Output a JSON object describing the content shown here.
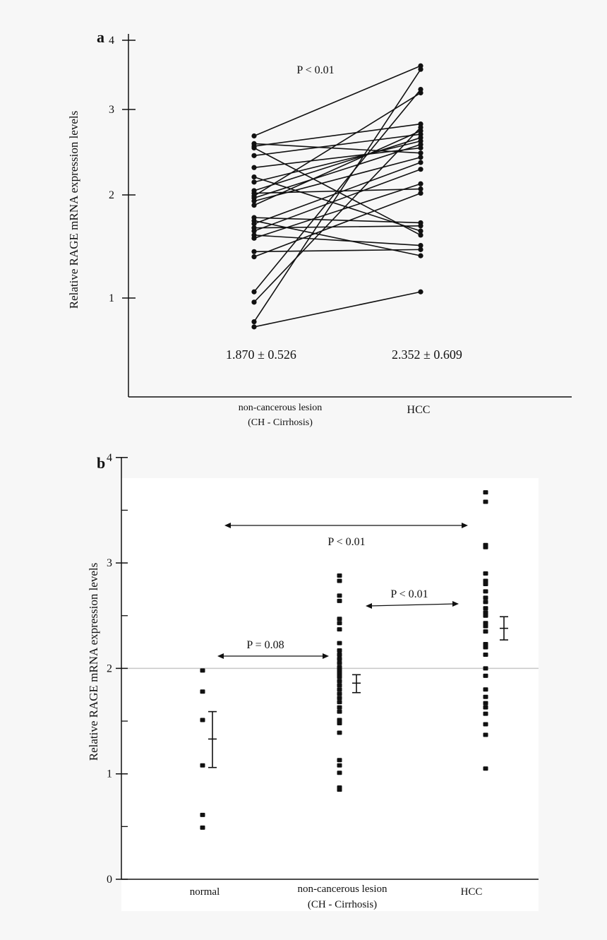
{
  "chart_data": [
    {
      "panel": "a",
      "type": "line",
      "subtype": "paired",
      "ylabel": "Relative RAGE mRNA expression levels",
      "categories": [
        "non-cancerous lesion",
        "HCC"
      ],
      "category_sublabels": [
        "(CH - Cirrhosis)",
        ""
      ],
      "yticks": [
        1,
        2,
        3,
        4
      ],
      "annotation": "P < 0.01",
      "summary": [
        "1.870 ± 0.526",
        "2.352 ± 0.609"
      ],
      "pairs": [
        [
          2.69,
          3.63
        ],
        [
          2.6,
          2.49
        ],
        [
          2.57,
          2.83
        ],
        [
          2.55,
          1.61
        ],
        [
          2.46,
          2.71
        ],
        [
          2.32,
          2.55
        ],
        [
          2.21,
          1.65
        ],
        [
          2.15,
          2.63
        ],
        [
          2.05,
          2.67
        ],
        [
          2.02,
          2.07
        ],
        [
          1.99,
          3.24
        ],
        [
          1.97,
          2.59
        ],
        [
          1.94,
          2.44
        ],
        [
          1.9,
          2.75
        ],
        [
          1.78,
          1.73
        ],
        [
          1.75,
          1.41
        ],
        [
          1.72,
          2.38
        ],
        [
          1.68,
          1.7
        ],
        [
          1.65,
          2.3
        ],
        [
          1.61,
          1.51
        ],
        [
          1.58,
          2.13
        ],
        [
          1.45,
          1.47
        ],
        [
          1.4,
          2.02
        ],
        [
          1.06,
          3.29
        ],
        [
          0.96,
          2.79
        ],
        [
          0.77,
          3.58
        ],
        [
          0.72,
          1.06
        ]
      ],
      "color": "#111111"
    },
    {
      "panel": "b",
      "type": "scatter",
      "ylabel": "Relative RAGE mRNA expression levels",
      "ylim": [
        0,
        4
      ],
      "yticks": [
        0,
        1,
        2,
        3,
        4
      ],
      "reference_line": 2,
      "categories": [
        "normal",
        "non-cancerous lesion",
        "HCC"
      ],
      "category_sublabels": [
        "",
        "(CH - Cirrhosis)",
        ""
      ],
      "series": [
        {
          "category": "normal",
          "values": [
            1.98,
            1.78,
            1.51,
            1.08,
            0.61,
            0.49
          ],
          "mean": 1.33,
          "err_low": 1.06,
          "err_high": 1.59
        },
        {
          "category": "non-cancerous lesion",
          "values": [
            2.88,
            2.83,
            2.69,
            2.64,
            2.47,
            2.43,
            2.37,
            2.24,
            2.17,
            2.13,
            2.09,
            2.05,
            2.01,
            1.98,
            1.95,
            1.92,
            1.88,
            1.84,
            1.8,
            1.76,
            1.72,
            1.68,
            1.63,
            1.59,
            1.51,
            1.48,
            1.39,
            1.13,
            1.08,
            1.01,
            0.87,
            0.85
          ],
          "mean": 1.86,
          "err_low": 1.77,
          "err_high": 1.94
        },
        {
          "category": "HCC",
          "values": [
            3.67,
            3.58,
            3.17,
            3.15,
            2.9,
            2.83,
            2.8,
            2.73,
            2.67,
            2.63,
            2.57,
            2.53,
            2.5,
            2.43,
            2.4,
            2.35,
            2.23,
            2.2,
            2.13,
            2.0,
            1.93,
            1.8,
            1.73,
            1.67,
            1.63,
            1.57,
            1.47,
            1.37,
            1.05
          ],
          "mean": 2.38,
          "err_low": 2.27,
          "err_high": 2.49
        }
      ],
      "comparisons": [
        {
          "from": "normal",
          "to": "HCC",
          "label": "P < 0.01"
        },
        {
          "from": "non-cancerous lesion",
          "to": "HCC",
          "label": "P < 0.01"
        },
        {
          "from": "normal",
          "to": "non-cancerous lesion",
          "label": "P = 0.08"
        }
      ],
      "color": "#111111",
      "reference_color": "#c8c8c8"
    }
  ]
}
